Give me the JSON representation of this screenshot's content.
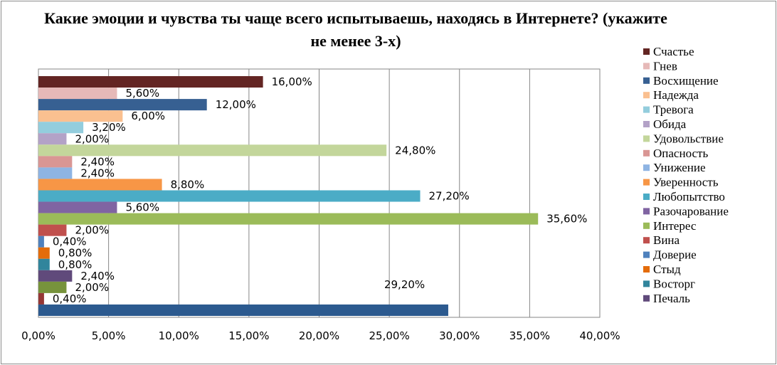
{
  "chart_data": {
    "type": "bar",
    "orientation": "horizontal",
    "title": "Какие эмоции и чувства ты чаще всего испытываешь, находясь в Интернете?  (укажите не менее 3-х)",
    "xlim": [
      0,
      40
    ],
    "x_ticks": [
      "0,00%",
      "5,00%",
      "10,00%",
      "15,00%",
      "20,00%",
      "25,00%",
      "30,00%",
      "35,00%",
      "40,00%"
    ],
    "grid": true,
    "legend_position": "right",
    "series": [
      {
        "name": "Счастье",
        "value": 16.0,
        "label": "16,00%",
        "color": "#632523"
      },
      {
        "name": "Гнев",
        "value": 5.6,
        "label": "5,60%",
        "color": "#e6b9b8"
      },
      {
        "name": "Восхищение",
        "value": 12.0,
        "label": "12,00%",
        "color": "#376092"
      },
      {
        "name": "Надежда",
        "value": 6.0,
        "label": "6,00%",
        "color": "#fac090"
      },
      {
        "name": "Тревога",
        "value": 3.2,
        "label": "3,20%",
        "color": "#93cddd"
      },
      {
        "name": "Обида",
        "value": 2.0,
        "label": "2,00%",
        "color": "#b3a2c7"
      },
      {
        "name": "Удовольствие",
        "value": 24.8,
        "label": "24,80%",
        "color": "#c3d69b"
      },
      {
        "name": "Опасность",
        "value": 2.4,
        "label": "2,40%",
        "color": "#d99694"
      },
      {
        "name": "Унижение",
        "value": 2.4,
        "label": "2,40%",
        "color": "#8eb4e3"
      },
      {
        "name": "Уверенность",
        "value": 8.8,
        "label": "8,80%",
        "color": "#f79646"
      },
      {
        "name": "Любопытство",
        "value": 27.2,
        "label": "27,20%",
        "color": "#4bacc6"
      },
      {
        "name": "Разочарование",
        "value": 5.6,
        "label": "5,60%",
        "color": "#8064a2"
      },
      {
        "name": "Интерес",
        "value": 35.6,
        "label": "35,60%",
        "color": "#9bbb59"
      },
      {
        "name": "Вина",
        "value": 2.0,
        "label": "2,00%",
        "color": "#c0504d"
      },
      {
        "name": "Доверие",
        "value": 0.4,
        "label": "0,40%",
        "color": "#4f81bd"
      },
      {
        "name": "Стыд",
        "value": 0.8,
        "label": "0,80%",
        "color": "#e46c0a"
      },
      {
        "name": "Восторг",
        "value": 0.8,
        "label": "0,80%",
        "color": "#31859c"
      },
      {
        "name": "Печаль",
        "value": 2.4,
        "label": "2,40%",
        "color": "#604a7b"
      },
      {
        "name": "",
        "value": 2.0,
        "label": "2,00%",
        "color": "#77933c"
      },
      {
        "name": "",
        "value": 0.4,
        "label": "0,40%",
        "color": "#953735"
      },
      {
        "name": "",
        "value": 29.2,
        "label": "29,20%",
        "color": "#2c5a8f"
      }
    ]
  }
}
